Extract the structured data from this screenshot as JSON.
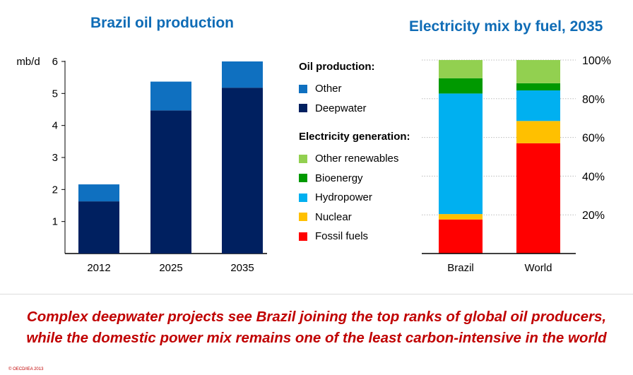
{
  "chart_data": [
    {
      "type": "bar",
      "stacked": true,
      "title": "Brazil oil production",
      "ylabel": "mb/d",
      "ylim": [
        0,
        6
      ],
      "yticks": [
        1,
        2,
        3,
        4,
        5,
        6
      ],
      "categories": [
        "2012",
        "2025",
        "2035"
      ],
      "series": [
        {
          "name": "Deepwater",
          "color": "#002060",
          "values": [
            1.63,
            4.47,
            5.18
          ]
        },
        {
          "name": "Other",
          "color": "#0f70c0",
          "values": [
            0.53,
            0.9,
            0.82
          ]
        }
      ],
      "grid": false
    },
    {
      "type": "bar",
      "stacked": true,
      "title": "Electricity mix by fuel, 2035",
      "ylim": [
        0,
        100
      ],
      "yticks": [
        "20%",
        "40%",
        "60%",
        "80%",
        "100%"
      ],
      "ytick_values": [
        20,
        40,
        60,
        80,
        100
      ],
      "categories": [
        "Brazil",
        "World"
      ],
      "series": [
        {
          "name": "Fossil fuels",
          "color": "#ff0000",
          "values": [
            17.6,
            57
          ]
        },
        {
          "name": "Nuclear",
          "color": "#ffc000",
          "values": [
            2.8,
            11.5
          ]
        },
        {
          "name": "Hydropower",
          "color": "#00b0f0",
          "values": [
            62.3,
            15.8
          ]
        },
        {
          "name": "Bioenergy",
          "color": "#009900",
          "values": [
            7.9,
            3.7
          ]
        },
        {
          "name": "Other renewables",
          "color": "#92d050",
          "values": [
            9.4,
            12
          ]
        }
      ],
      "grid": true,
      "axis_side": "right"
    }
  ],
  "legend": {
    "oil_heading": "Oil production:",
    "oil_items": [
      {
        "label": "Other",
        "color": "#0f70c0"
      },
      {
        "label": "Deepwater",
        "color": "#002060"
      }
    ],
    "elec_heading": "Electricity generation:",
    "elec_items": [
      {
        "label": "Other renewables",
        "color": "#92d050"
      },
      {
        "label": "Bioenergy",
        "color": "#009900"
      },
      {
        "label": "Hydropower",
        "color": "#00b0f0"
      },
      {
        "label": "Nuclear",
        "color": "#ffc000"
      },
      {
        "label": "Fossil fuels",
        "color": "#ff0000"
      }
    ]
  },
  "caption": {
    "line1": "Complex deepwater projects see Brazil joining the top ranks of global oil producers,",
    "line2": "while the domestic power mix remains one of the least carbon-intensive in the world"
  },
  "copyright": "© OECD/IEA 2013"
}
